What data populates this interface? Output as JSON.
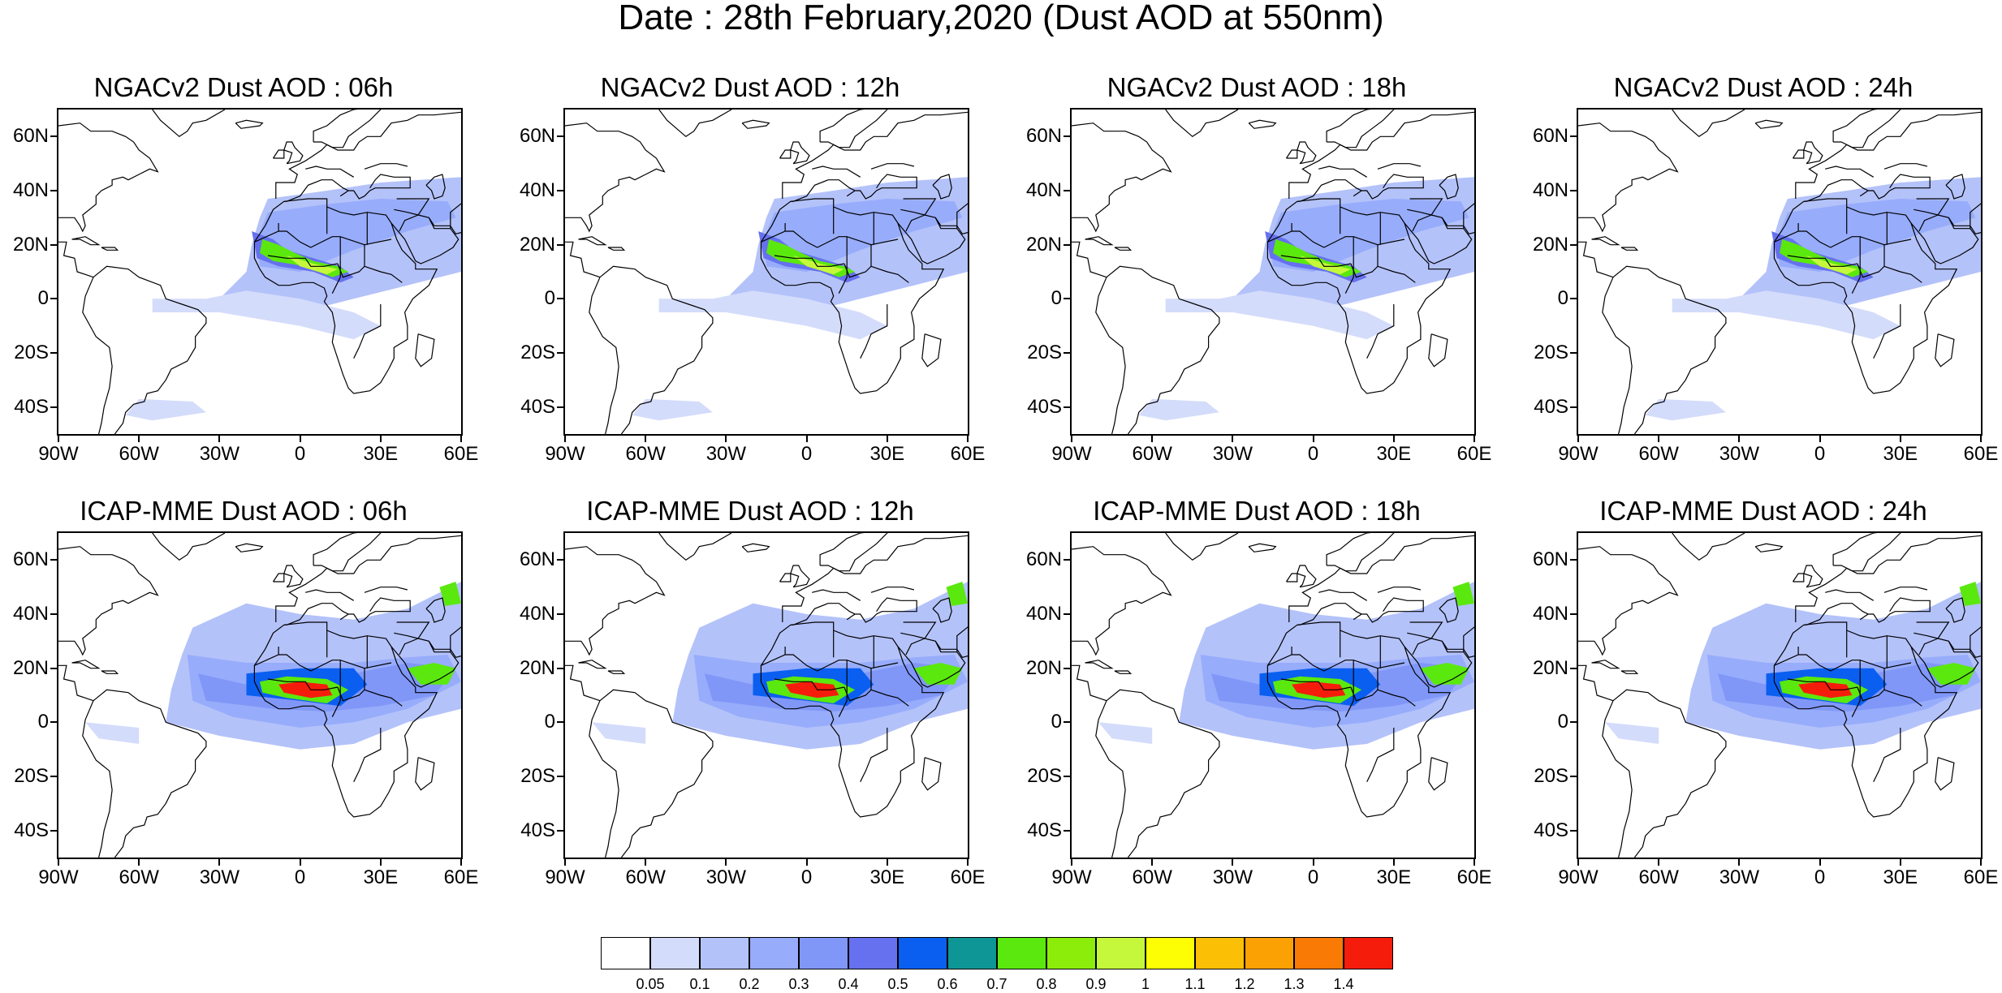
{
  "title": "Date : 28th February,2020 (Dust AOD at 550nm)",
  "panels": [
    {
      "title": "NGACv2 Dust AOD : 06h",
      "model": "ngac",
      "hour": 6
    },
    {
      "title": "NGACv2 Dust AOD : 12h",
      "model": "ngac",
      "hour": 12
    },
    {
      "title": "NGACv2 Dust AOD : 18h",
      "model": "ngac",
      "hour": 18
    },
    {
      "title": "NGACv2 Dust AOD : 24h",
      "model": "ngac",
      "hour": 24
    },
    {
      "title": "ICAP-MME Dust AOD : 06h",
      "model": "icap",
      "hour": 6
    },
    {
      "title": "ICAP-MME Dust AOD : 12h",
      "model": "icap",
      "hour": 12
    },
    {
      "title": "ICAP-MME Dust AOD : 18h",
      "model": "icap",
      "hour": 18
    },
    {
      "title": "ICAP-MME Dust AOD : 24h",
      "model": "icap",
      "hour": 24
    }
  ],
  "lat_labels": [
    "60N",
    "40N",
    "20N",
    "0",
    "20S",
    "40S"
  ],
  "lat_values": [
    60,
    40,
    20,
    0,
    -20,
    -40
  ],
  "lon_labels": [
    "90W",
    "60W",
    "30W",
    "0",
    "30E",
    "60E"
  ],
  "lon_values": [
    -90,
    -60,
    -30,
    0,
    30,
    60
  ],
  "extent": {
    "lon": [
      -90,
      60
    ],
    "lat": [
      -50,
      70
    ]
  },
  "colorbar": {
    "labels": [
      "0.05",
      "0.1",
      "0.2",
      "0.3",
      "0.4",
      "0.5",
      "0.6",
      "0.7",
      "0.8",
      "0.9",
      "1",
      "1.1",
      "1.2",
      "1.3",
      "1.4"
    ],
    "colors": [
      "#ffffff",
      "#d4dcfb",
      "#b4c2fa",
      "#97acfb",
      "#8097f8",
      "#6571ee",
      "#0a5ff0",
      "#0e9696",
      "#5be80e",
      "#8ced0a",
      "#c5f83a",
      "#fdfd03",
      "#fbc005",
      "#fba104",
      "#f97a04",
      "#f51c0b"
    ]
  }
}
